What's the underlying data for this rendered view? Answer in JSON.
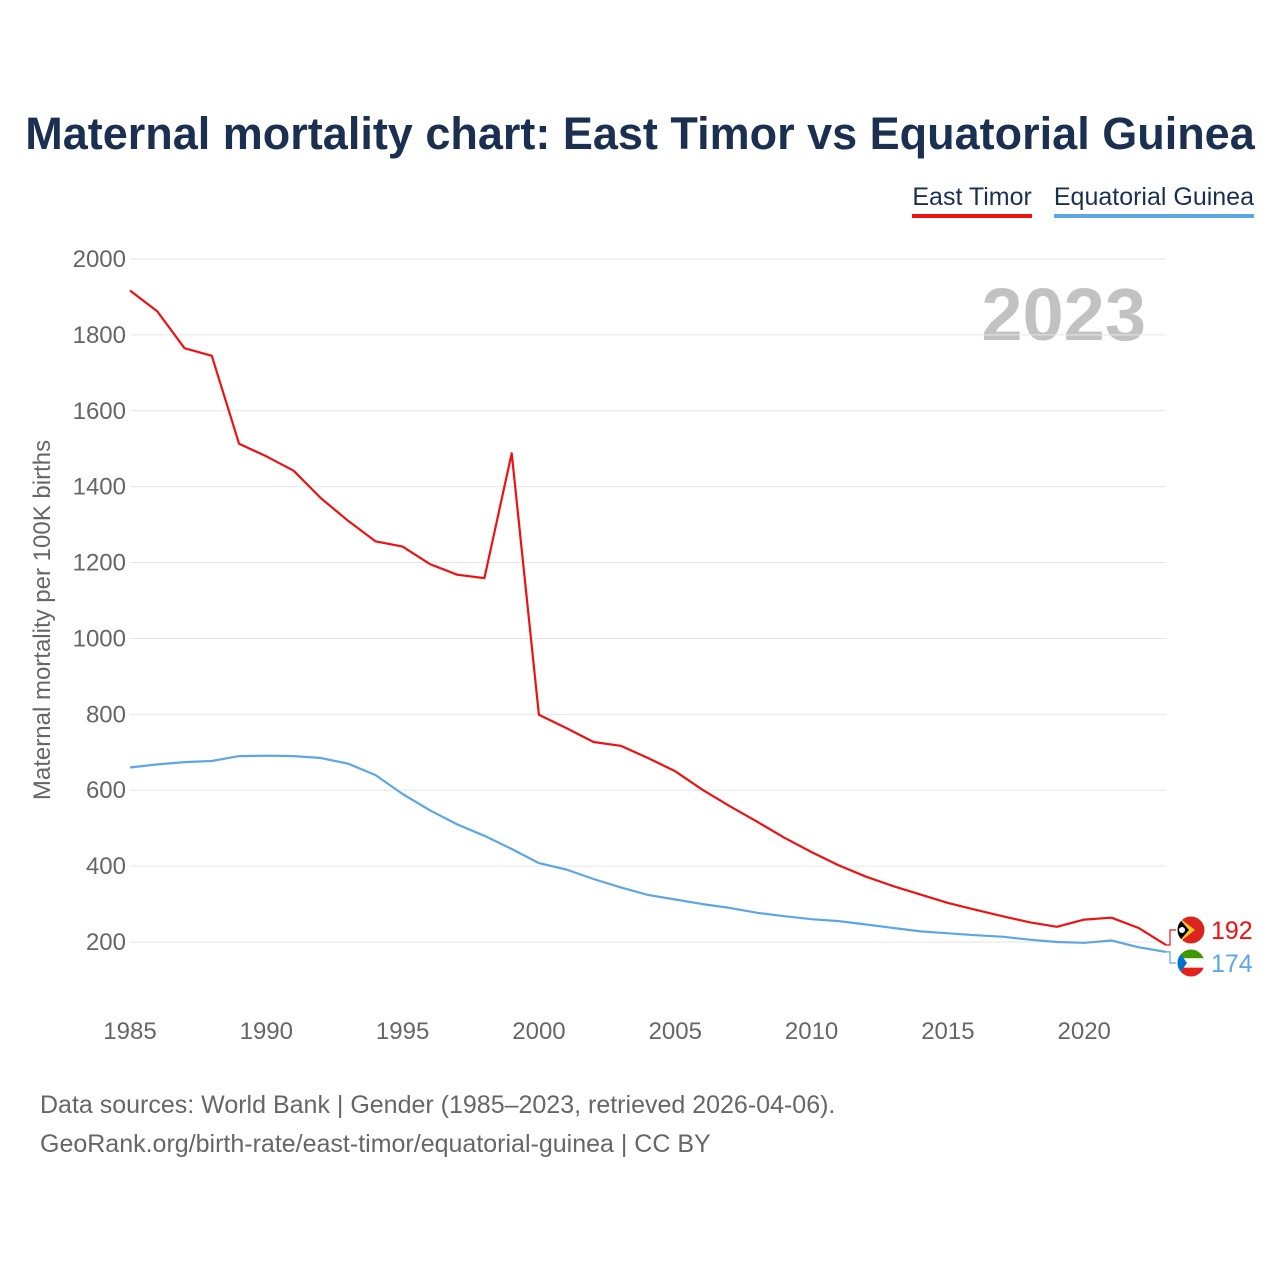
{
  "title": "Maternal mortality chart: East Timor vs Equatorial Guinea",
  "legend": [
    {
      "name": "East Timor",
      "color": "#ee1111"
    },
    {
      "name": "Equatorial Guinea",
      "color": "#5da6e6"
    }
  ],
  "year_label": "2023",
  "source": {
    "line1": "Data sources: World Bank | Gender (1985–2023, retrieved 2026-04-06).",
    "line2": "GeoRank.org/birth-rate/east-timor/equatorial-guinea | CC BY"
  },
  "chart_data": {
    "type": "line",
    "title": "Maternal mortality chart: East Timor vs Equatorial Guinea",
    "xlabel": "",
    "ylabel": "Maternal mortality per 100K births",
    "xlim": [
      1985,
      2023
    ],
    "ylim": [
      100,
      2000
    ],
    "x_ticks": [
      1985,
      1990,
      1995,
      2000,
      2005,
      2010,
      2015,
      2020
    ],
    "y_ticks": [
      200,
      400,
      600,
      800,
      1000,
      1200,
      1400,
      1600,
      1800,
      2000
    ],
    "x": [
      1985,
      1986,
      1987,
      1988,
      1989,
      1990,
      1991,
      1992,
      1993,
      1994,
      1995,
      1996,
      1997,
      1998,
      1999,
      2000,
      2001,
      2002,
      2003,
      2004,
      2005,
      2006,
      2007,
      2008,
      2009,
      2010,
      2011,
      2012,
      2013,
      2014,
      2015,
      2016,
      2017,
      2018,
      2019,
      2020,
      2021,
      2022,
      2023
    ],
    "series": [
      {
        "name": "East Timor",
        "color": "#ee1111",
        "end_label": "192",
        "values": [
          1917,
          1862,
          1765,
          1745,
          1513,
          1480,
          1442,
          1370,
          1310,
          1256,
          1242,
          1196,
          1168,
          1159,
          1488,
          799,
          764,
          727,
          717,
          685,
          650,
          601,
          558,
          517,
          475,
          437,
          402,
          372,
          347,
          325,
          303,
          285,
          268,
          252,
          240,
          259,
          264,
          237,
          192
        ]
      },
      {
        "name": "Equatorial Guinea",
        "color": "#5da6e6",
        "end_label": "174",
        "values": [
          660,
          668,
          674,
          677,
          690,
          691,
          690,
          685,
          670,
          640,
          590,
          547,
          510,
          480,
          445,
          408,
          391,
          366,
          344,
          324,
          312,
          300,
          290,
          277,
          268,
          260,
          255,
          246,
          237,
          228,
          223,
          218,
          214,
          206,
          200,
          198,
          204,
          186,
          174
        ]
      }
    ]
  }
}
